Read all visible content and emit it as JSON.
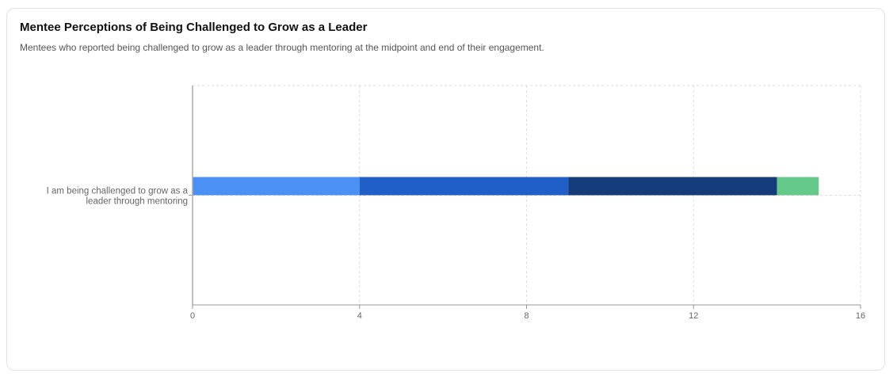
{
  "chart_data": {
    "type": "bar",
    "orientation": "horizontal",
    "stacked": true,
    "title": "Mentee Perceptions of Being Challenged to Grow as a Leader",
    "subtitle": "Mentees who reported being challenged to grow as a leader through mentoring at the midpoint and end of their engagement.",
    "categories": [
      "I am being challenged to grow as a leader through mentoring"
    ],
    "category_lines": [
      [
        "I am being challenged to grow as a",
        "leader through mentoring"
      ]
    ],
    "series": [
      {
        "values": [
          4
        ],
        "color": "#4a90f5"
      },
      {
        "values": [
          5
        ],
        "color": "#1f5fc7"
      },
      {
        "values": [
          5
        ],
        "color": "#143b7a"
      },
      {
        "values": [
          1
        ],
        "color": "#66c98c"
      }
    ],
    "xlim": [
      0,
      16
    ],
    "xticks": [
      "0",
      "4",
      "8",
      "12",
      "16"
    ],
    "xtick_values": [
      0,
      4,
      8,
      12,
      16
    ],
    "grid": true,
    "xlabel": "",
    "ylabel": ""
  }
}
